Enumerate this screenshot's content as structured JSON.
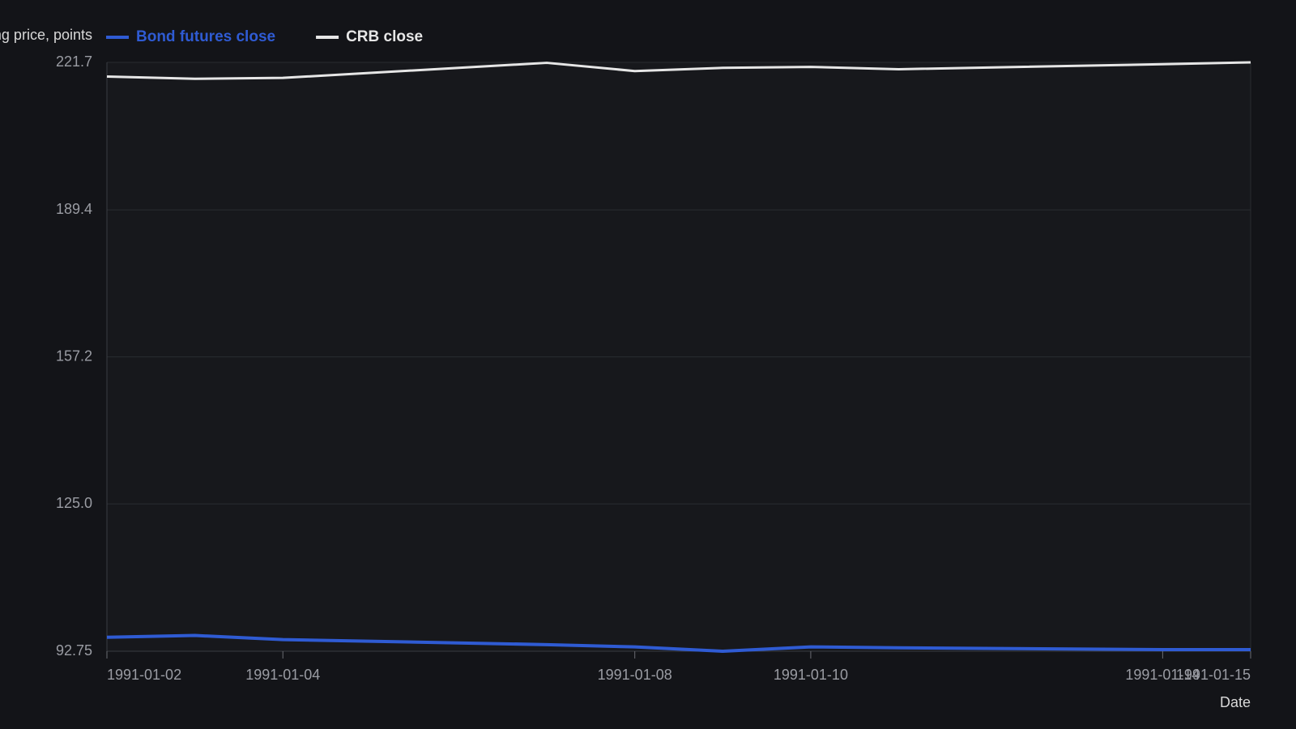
{
  "chart_data": {
    "type": "line",
    "y_label": "Closing price, points",
    "x_label": "Date",
    "x": [
      "1991-01-02",
      "1991-01-03",
      "1991-01-04",
      "1991-01-07",
      "1991-01-08",
      "1991-01-09",
      "1991-01-10",
      "1991-01-11",
      "1991-01-14",
      "1991-01-15"
    ],
    "series": [
      {
        "name": "Bond futures close",
        "color": "#2f5bd3",
        "values": [
          95.8,
          96.2,
          95.3,
          94.2,
          93.7,
          92.75,
          93.7,
          93.5,
          93.1,
          93.1
        ]
      },
      {
        "name": "CRB close",
        "color": "#e6e6e6",
        "values": [
          218.6,
          218.1,
          218.3,
          221.6,
          219.8,
          220.5,
          220.7,
          220.2,
          221.3,
          221.7
        ]
      }
    ],
    "xlim": [
      "1991-01-02",
      "1991-01-15"
    ],
    "xticks": [
      "1991-01-02",
      "1991-01-04",
      "1991-01-08",
      "1991-01-10",
      "1991-01-14",
      "1991-01-15"
    ],
    "ylim": [
      92.75,
      221.7
    ],
    "yticks": [
      92.75,
      {
        "value": 125,
        "label": "125.0"
      },
      157.2,
      189.4,
      221.7
    ],
    "grid": true
  }
}
